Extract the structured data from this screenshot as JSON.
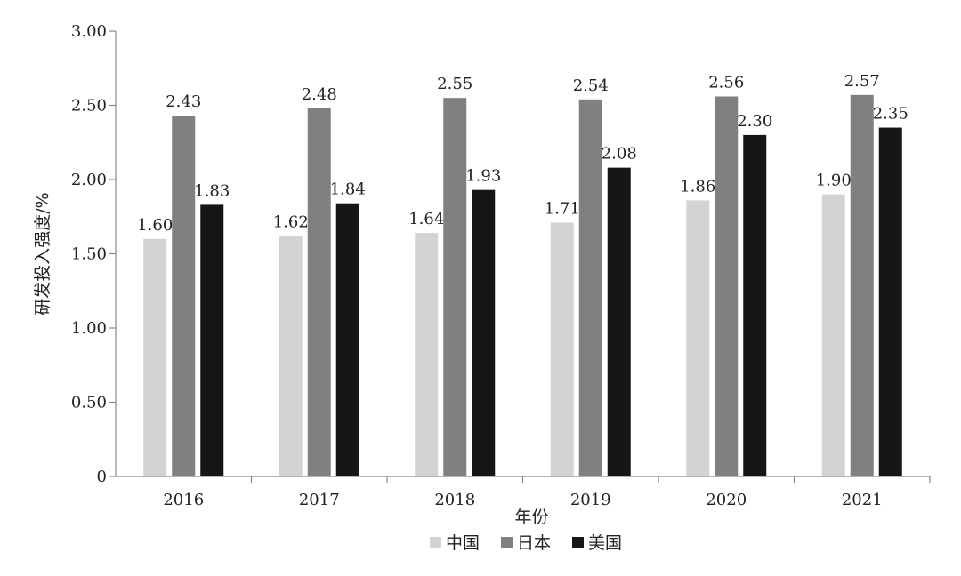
{
  "chart_data": {
    "type": "bar",
    "title": "",
    "xlabel": "年份",
    "ylabel": "研发投入强度/%",
    "categories": [
      "2016",
      "2017",
      "2018",
      "2019",
      "2020",
      "2021"
    ],
    "series": [
      {
        "name": "中国",
        "color": "#d3d3d3",
        "values": [
          1.6,
          1.62,
          1.64,
          1.71,
          1.86,
          1.9
        ],
        "labels": [
          "1.60",
          "1.62",
          "1.64",
          "1.71",
          "1.86",
          "1.90"
        ]
      },
      {
        "name": "日本",
        "color": "#808080",
        "values": [
          2.43,
          2.48,
          2.55,
          2.54,
          2.56,
          2.57
        ],
        "labels": [
          "2.43",
          "2.48",
          "2.55",
          "2.54",
          "2.56",
          "2.57"
        ]
      },
      {
        "name": "美国",
        "color": "#161616",
        "values": [
          1.83,
          1.84,
          1.93,
          2.08,
          2.3,
          2.35
        ],
        "labels": [
          "1.83",
          "1.84",
          "1.93",
          "2.08",
          "2.30",
          "2.35"
        ]
      }
    ],
    "ylim": [
      0,
      3.0
    ],
    "yticks": [
      0,
      0.5,
      1.0,
      1.5,
      2.0,
      2.5,
      3.0
    ],
    "ytick_labels": [
      "0",
      "0.50",
      "1.00",
      "1.50",
      "2.00",
      "2.50",
      "3.00"
    ],
    "grid": false,
    "legend_position": "bottom-center"
  }
}
